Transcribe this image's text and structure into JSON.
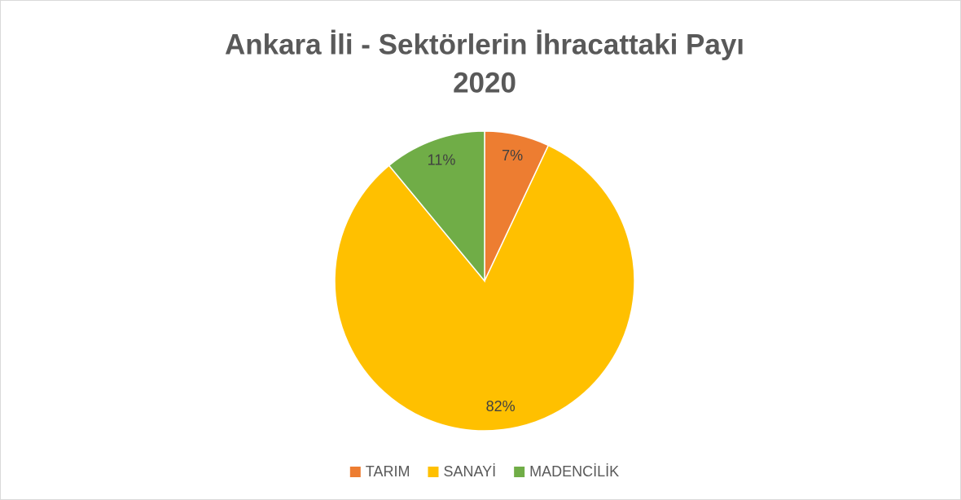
{
  "chart_data": {
    "type": "pie",
    "title": [
      "Ankara İli - Sektörlerin İhracattaki Payı",
      "2020"
    ],
    "categories": [
      "TARIM",
      "SANAYİ",
      "MADENCİLİK"
    ],
    "values": [
      7,
      82,
      11
    ],
    "value_labels": [
      "7%",
      "82%",
      "11%"
    ],
    "colors": [
      "#ed7d31",
      "#ffc000",
      "#70ad47"
    ],
    "legend": "bottom"
  }
}
